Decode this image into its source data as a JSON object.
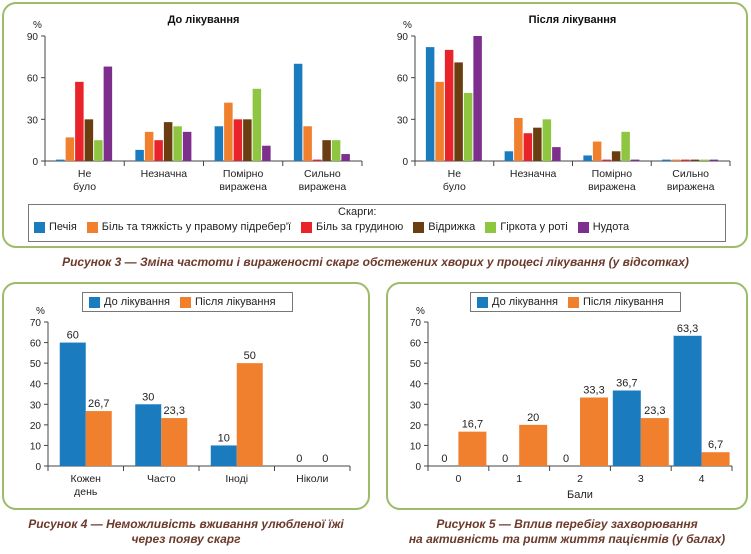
{
  "figure3": {
    "caption": "Рисунок 3 — Зміна частоти і вираженості скарг обстежених хворих у процесі лікування (у відсотках)",
    "legend_title": "Скарги:",
    "legend_items": [
      "Печія",
      "Біль та тяжкість у правому підребер'ї",
      "Біль за грудиною",
      "Відрижка",
      "Гіркота у роті",
      "Нудота"
    ],
    "colors": [
      "#1a7bbf",
      "#f07f2e",
      "#e8232a",
      "#6b3e12",
      "#8fc641",
      "#7e2f8e"
    ]
  },
  "figure4": {
    "caption_line1": "Рисунок 4 — Неможливість вживання улюбленої їжі",
    "caption_line2": "через появу скарг",
    "legend_items": [
      "До лікування",
      "Після лікування"
    ]
  },
  "figure5": {
    "caption_line1": "Рисунок 5 — Вплив перебігу захворювання",
    "caption_line2": "на активність та ритм життя пацієнтів (у балах)",
    "legend_items": [
      "До лікування",
      "Після лікування"
    ]
  },
  "chart_data": [
    {
      "type": "bar",
      "title": "До лікування",
      "ylabel": "%",
      "ylim": [
        0,
        90
      ],
      "yticks": [
        0,
        30,
        60,
        90
      ],
      "categories": [
        "Не було",
        "Незначна",
        "Помірно виражена",
        "Сильно виражена"
      ],
      "series": [
        {
          "name": "Печія",
          "values": [
            1,
            8,
            25,
            70
          ]
        },
        {
          "name": "Біль та тяжкість у правому підребер'ї",
          "values": [
            17,
            21,
            42,
            25
          ]
        },
        {
          "name": "Біль за грудиною",
          "values": [
            57,
            15,
            30,
            1
          ]
        },
        {
          "name": "Відрижка",
          "values": [
            30,
            28,
            30,
            15
          ]
        },
        {
          "name": "Гіркота у роті",
          "values": [
            15,
            25,
            52,
            15
          ]
        },
        {
          "name": "Нудота",
          "values": [
            68,
            21,
            11,
            5
          ]
        }
      ]
    },
    {
      "type": "bar",
      "title": "Після лікування",
      "ylabel": "%",
      "ylim": [
        0,
        90
      ],
      "yticks": [
        0,
        30,
        60,
        90
      ],
      "categories": [
        "Не було",
        "Незначна",
        "Помірно виражена",
        "Сильно виражена"
      ],
      "series": [
        {
          "name": "Печія",
          "values": [
            82,
            7,
            4,
            1
          ]
        },
        {
          "name": "Біль та тяжкість у правому підребер'ї",
          "values": [
            57,
            31,
            14,
            1
          ]
        },
        {
          "name": "Біль за грудиною",
          "values": [
            80,
            20,
            1,
            1
          ]
        },
        {
          "name": "Відрижка",
          "values": [
            71,
            24,
            7,
            1
          ]
        },
        {
          "name": "Гіркота у роті",
          "values": [
            49,
            30,
            21,
            1
          ]
        },
        {
          "name": "Нудота",
          "values": [
            90,
            10,
            1,
            1
          ]
        }
      ]
    },
    {
      "type": "bar",
      "ylabel": "%",
      "ylim": [
        0,
        70
      ],
      "yticks": [
        0,
        10,
        20,
        30,
        40,
        50,
        60,
        70
      ],
      "categories": [
        "Кожен день",
        "Часто",
        "Іноді",
        "Ніколи"
      ],
      "series": [
        {
          "name": "До лікування",
          "values": [
            60,
            30,
            10,
            0
          ],
          "labels": [
            "60",
            "30",
            "10",
            "0"
          ]
        },
        {
          "name": "Після лікування",
          "values": [
            26.7,
            23.3,
            50,
            0
          ],
          "labels": [
            "26,7",
            "23,3",
            "50",
            "0"
          ]
        }
      ]
    },
    {
      "type": "bar",
      "ylabel": "%",
      "xlabel": "Бали",
      "ylim": [
        0,
        70
      ],
      "yticks": [
        0,
        10,
        20,
        30,
        40,
        50,
        60,
        70
      ],
      "categories": [
        "0",
        "1",
        "2",
        "3",
        "4"
      ],
      "series": [
        {
          "name": "До лікування",
          "values": [
            0,
            0,
            0,
            36.7,
            63.3
          ],
          "labels": [
            "0",
            "0",
            "0",
            "36,7",
            "63,3"
          ]
        },
        {
          "name": "Після лікування",
          "values": [
            16.7,
            20,
            33.3,
            23.3,
            6.7
          ],
          "labels": [
            "16,7",
            "20",
            "33,3",
            "23,3",
            "6,7"
          ]
        }
      ]
    }
  ]
}
